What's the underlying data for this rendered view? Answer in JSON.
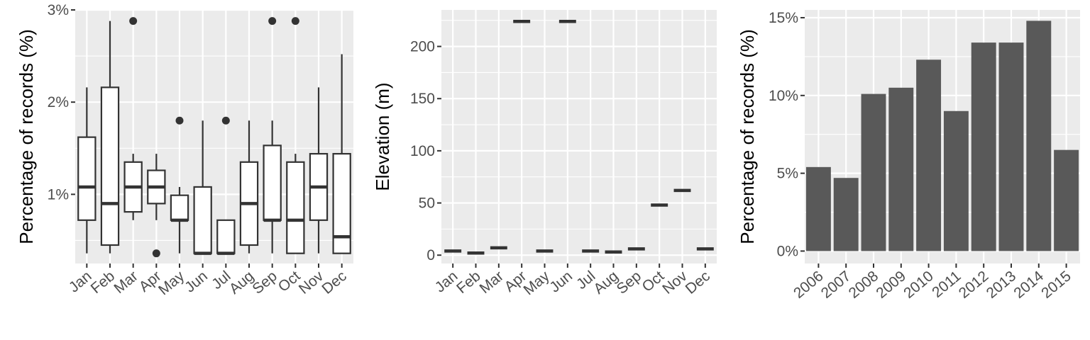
{
  "chart_data": [
    {
      "type": "box",
      "ylabel": "Percentage of records (%)",
      "xlabel": "",
      "categories": [
        "Jan",
        "Feb",
        "Mar",
        "Apr",
        "May",
        "Jun",
        "Jul",
        "Aug",
        "Sep",
        "Oct",
        "Nov",
        "Dec"
      ],
      "yticks": [
        "1%",
        "2%",
        "3%"
      ],
      "ytick_values": [
        1,
        2,
        3
      ],
      "ylim": [
        0.25,
        3.0
      ],
      "boxes": [
        {
          "min": 0.36,
          "q1": 0.72,
          "median": 1.08,
          "q3": 1.62,
          "max": 2.16,
          "outliers": []
        },
        {
          "min": 0.36,
          "q1": 0.45,
          "median": 0.9,
          "q3": 2.16,
          "max": 2.88,
          "outliers": []
        },
        {
          "min": 0.72,
          "q1": 0.81,
          "median": 1.08,
          "q3": 1.35,
          "max": 1.44,
          "outliers": [
            2.88
          ]
        },
        {
          "min": 0.72,
          "q1": 0.9,
          "median": 1.08,
          "q3": 1.26,
          "max": 1.44,
          "outliers": [
            0.36
          ]
        },
        {
          "min": 0.36,
          "q1": 0.72,
          "median": 0.72,
          "q3": 0.99,
          "max": 1.08,
          "outliers": [
            1.8
          ]
        },
        {
          "min": 0.36,
          "q1": 0.36,
          "median": 0.36,
          "q3": 1.08,
          "max": 1.8,
          "outliers": []
        },
        {
          "min": 0.36,
          "q1": 0.36,
          "median": 0.36,
          "q3": 0.72,
          "max": 0.72,
          "outliers": [
            1.8
          ]
        },
        {
          "min": 0.36,
          "q1": 0.45,
          "median": 0.9,
          "q3": 1.35,
          "max": 1.8,
          "outliers": []
        },
        {
          "min": 0.36,
          "q1": 0.72,
          "median": 0.72,
          "q3": 1.53,
          "max": 1.8,
          "outliers": [
            2.88
          ]
        },
        {
          "min": 0.36,
          "q1": 0.36,
          "median": 0.72,
          "q3": 1.35,
          "max": 1.44,
          "outliers": [
            2.88
          ]
        },
        {
          "min": 0.36,
          "q1": 0.72,
          "median": 1.08,
          "q3": 1.44,
          "max": 2.16,
          "outliers": []
        },
        {
          "min": 0.36,
          "q1": 0.36,
          "median": 0.54,
          "q3": 1.44,
          "max": 2.52,
          "outliers": []
        }
      ]
    },
    {
      "type": "box",
      "ylabel": "Elevation (m)",
      "xlabel": "",
      "categories": [
        "Jan",
        "Feb",
        "Mar",
        "Apr",
        "May",
        "Jun",
        "Jul",
        "Aug",
        "Sep",
        "Oct",
        "Nov",
        "Dec"
      ],
      "yticks": [
        "0",
        "50",
        "100",
        "150",
        "200"
      ],
      "ytick_values": [
        0,
        50,
        100,
        150,
        200
      ],
      "ylim": [
        -8,
        235
      ],
      "values": [
        4,
        2,
        7,
        224,
        4,
        224,
        4,
        3,
        6,
        48,
        62,
        6
      ]
    },
    {
      "type": "bar",
      "ylabel": "Percentage of records (%)",
      "xlabel": "",
      "categories": [
        "2006",
        "2007",
        "2008",
        "2009",
        "2010",
        "2011",
        "2012",
        "2013",
        "2014",
        "2015"
      ],
      "values": [
        5.4,
        4.7,
        10.1,
        10.5,
        12.3,
        9.0,
        13.4,
        13.4,
        14.8,
        6.5
      ],
      "yticks": [
        "0%",
        "5%",
        "10%",
        "15%"
      ],
      "ytick_values": [
        0,
        5,
        10,
        15
      ],
      "ylim": [
        -0.8,
        15.5
      ]
    }
  ]
}
